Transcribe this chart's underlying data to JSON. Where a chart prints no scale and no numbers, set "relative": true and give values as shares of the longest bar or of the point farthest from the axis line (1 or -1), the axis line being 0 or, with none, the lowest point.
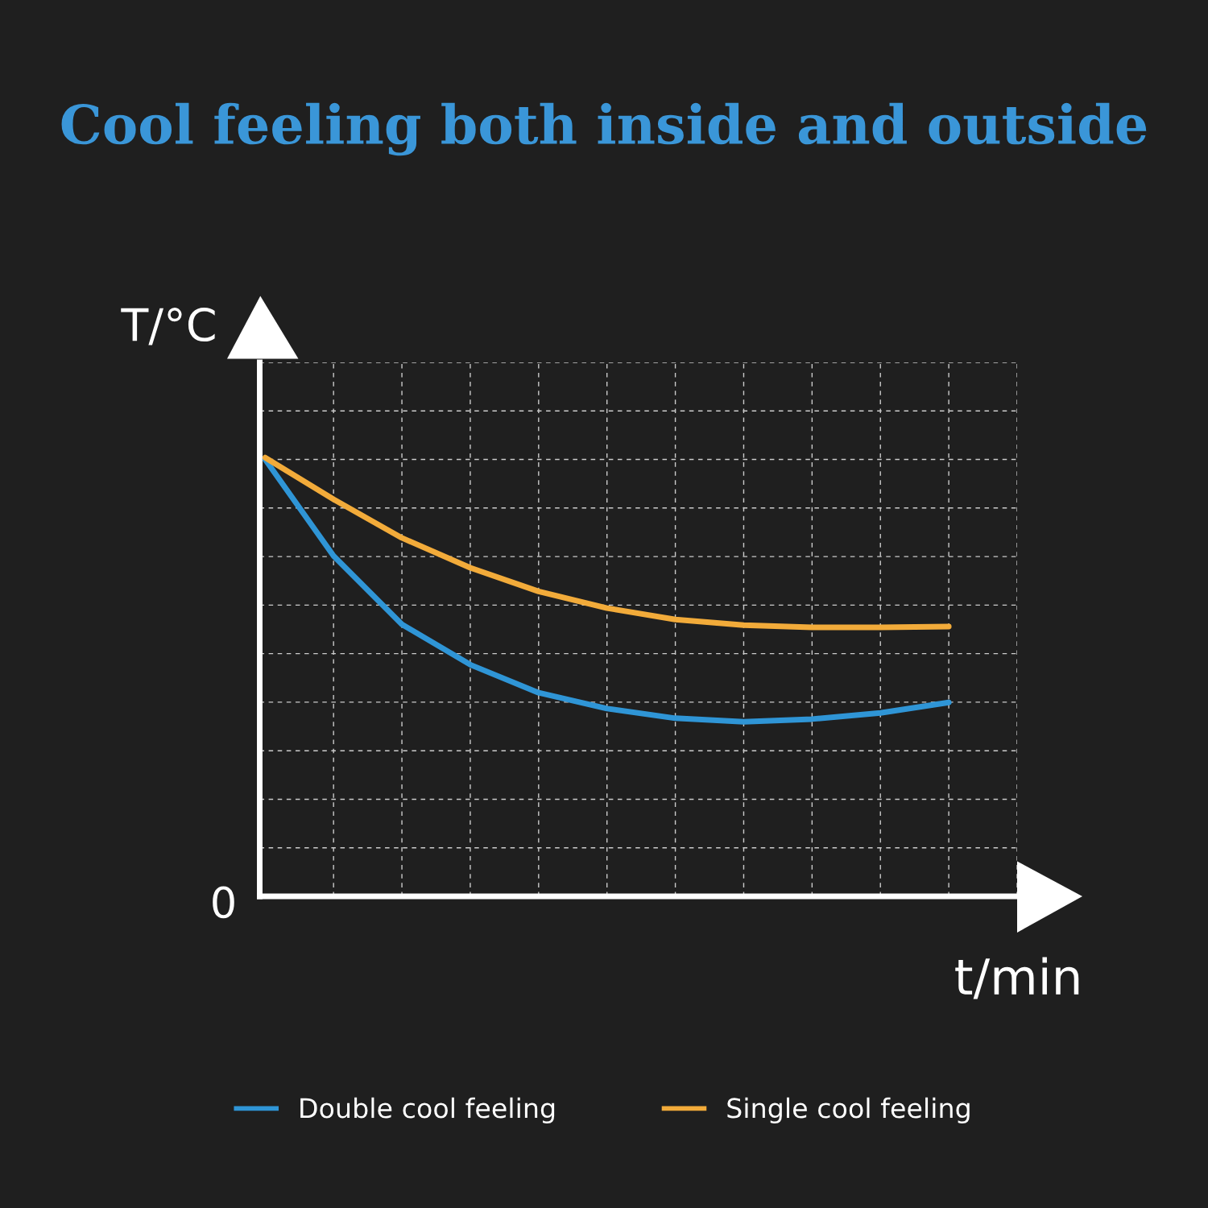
{
  "chart_data": {
    "type": "line",
    "title": "Cool feeling both inside and outside",
    "xlabel": "t/min",
    "ylabel": "T/°C",
    "annotations": [
      "0"
    ],
    "relative": true,
    "grid": true,
    "legend": "bottom",
    "line_style": "solid",
    "marker": "none",
    "categories": [
      null,
      null,
      null,
      null,
      null,
      null,
      null,
      null,
      null,
      null,
      null
    ],
    "series": [
      {
        "name": "Double cool feeling",
        "color": "#2f95d6",
        "values": [
          0.996,
          0.776,
          0.62,
          0.528,
          0.464,
          0.428,
          0.406,
          0.398,
          0.404,
          0.418,
          0.442
        ]
      },
      {
        "name": "Single cool feeling",
        "color": "#f2ab3a",
        "values": [
          1,
          0.905,
          0.817,
          0.749,
          0.695,
          0.657,
          0.631,
          0.618,
          0.613,
          0.613,
          0.615
        ]
      }
    ]
  }
}
